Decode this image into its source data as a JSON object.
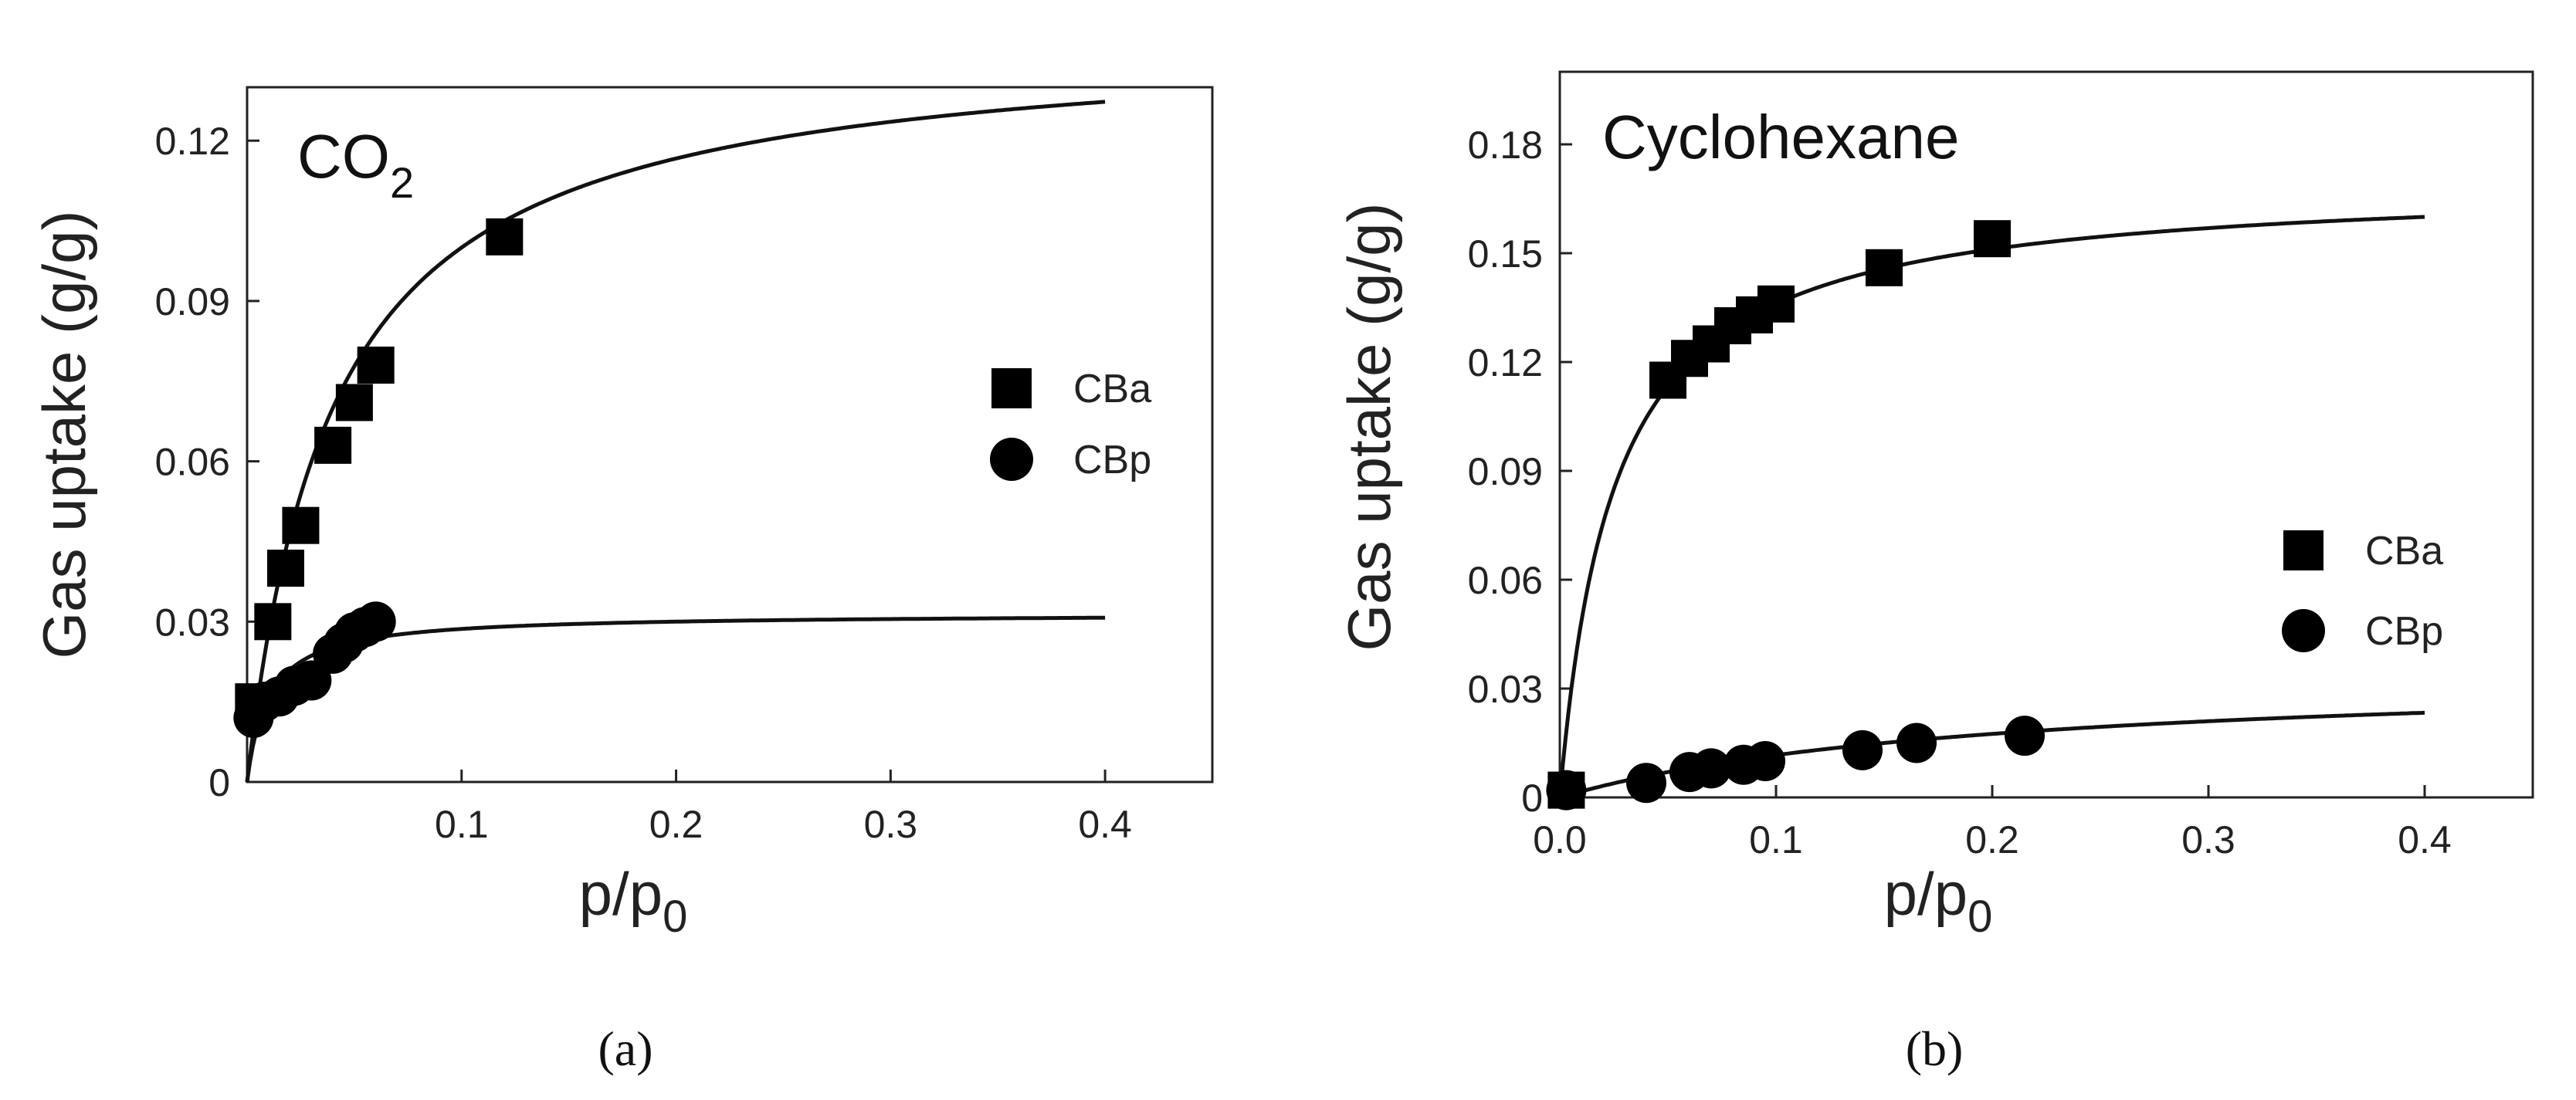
{
  "chart_data": [
    {
      "id": "a",
      "type": "scatter",
      "panel_label": "(a)",
      "annotation": "CO",
      "annotation_sub": "2",
      "xlabel": "p/p",
      "xlabel_sub": "0",
      "ylabel": "Gas uptake (g/g)",
      "xlim": [
        0,
        0.45
      ],
      "ylim": [
        0,
        0.13
      ],
      "xticks": [
        0.1,
        0.2,
        0.3,
        0.4
      ],
      "xtick_labels": [
        "0.1",
        "0.2",
        "0.3",
        "0.4"
      ],
      "yticks": [
        0,
        0.03,
        0.06,
        0.09,
        0.12
      ],
      "ytick_labels": [
        "0",
        "0.03",
        "0.06",
        "0.09",
        "0.12"
      ],
      "legend_position": "right",
      "series": [
        {
          "name": "CBa",
          "marker": "square",
          "x": [
            0.003,
            0.012,
            0.018,
            0.025,
            0.04,
            0.05,
            0.06,
            0.12
          ],
          "y": [
            0.015,
            0.03,
            0.04,
            0.048,
            0.063,
            0.071,
            0.078,
            0.102
          ],
          "fit": {
            "qmax": 0.14,
            "K": 25
          }
        },
        {
          "name": "CBp",
          "marker": "circle",
          "x": [
            0.003,
            0.008,
            0.015,
            0.022,
            0.03,
            0.04,
            0.045,
            0.05,
            0.055,
            0.06
          ],
          "y": [
            0.012,
            0.015,
            0.016,
            0.018,
            0.019,
            0.024,
            0.026,
            0.028,
            0.029,
            0.03
          ],
          "fit": {
            "qmax": 0.0315,
            "K": 100
          }
        }
      ]
    },
    {
      "id": "b",
      "type": "scatter",
      "panel_label": "(b)",
      "annotation": "Cyclohexane",
      "annotation_sub": "",
      "xlabel": "p/p",
      "xlabel_sub": "0",
      "ylabel": "Gas uptake (g/g)",
      "xlim": [
        0,
        0.45
      ],
      "ylim": [
        0,
        0.2
      ],
      "xticks": [
        0.0,
        0.1,
        0.2,
        0.3,
        0.4
      ],
      "xtick_labels": [
        "0.0",
        "0.1",
        "0.2",
        "0.3",
        "0.4"
      ],
      "yticks": [
        0,
        0.03,
        0.06,
        0.09,
        0.12,
        0.15,
        0.18
      ],
      "ytick_labels": [
        "0",
        "0.03",
        "0.06",
        "0.09",
        "0.12",
        "0.15",
        "0.18"
      ],
      "legend_position": "right",
      "series": [
        {
          "name": "CBa",
          "marker": "square",
          "x": [
            0.003,
            0.05,
            0.06,
            0.07,
            0.08,
            0.09,
            0.1,
            0.15,
            0.2
          ],
          "y": [
            0.002,
            0.115,
            0.121,
            0.125,
            0.13,
            0.133,
            0.136,
            0.146,
            0.154
          ],
          "fit": {
            "qmax": 0.17,
            "K": 40
          }
        },
        {
          "name": "CBp",
          "marker": "circle",
          "x": [
            0.003,
            0.04,
            0.06,
            0.07,
            0.085,
            0.095,
            0.14,
            0.165,
            0.215
          ],
          "y": [
            0.002,
            0.004,
            0.007,
            0.008,
            0.009,
            0.01,
            0.013,
            0.015,
            0.017
          ],
          "fit": {
            "qmax": 0.035,
            "K": 5
          }
        }
      ]
    }
  ]
}
